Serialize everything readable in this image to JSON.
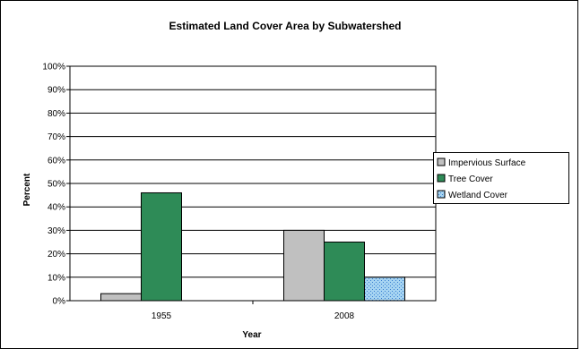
{
  "chart_data": {
    "type": "bar",
    "title": "Estimated Land Cover Area by Subwatershed",
    "xlabel": "Year",
    "ylabel": "Percent",
    "categories": [
      "1955",
      "2008"
    ],
    "ylim": [
      0,
      100
    ],
    "yticks": [
      "0%",
      "10%",
      "20%",
      "30%",
      "40%",
      "50%",
      "60%",
      "70%",
      "80%",
      "90%",
      "100%"
    ],
    "grid": true,
    "legend_position": "right",
    "series": [
      {
        "name": "Impervious Surface",
        "values": [
          3,
          30
        ],
        "color": "#c0c0c0",
        "pattern": "solid"
      },
      {
        "name": "Tree Cover",
        "values": [
          46,
          25
        ],
        "color": "#2e8b57",
        "pattern": "solid"
      },
      {
        "name": "Wetland Cover",
        "values": [
          0,
          10
        ],
        "color": "#a6d4f2",
        "pattern": "dotted"
      }
    ]
  }
}
